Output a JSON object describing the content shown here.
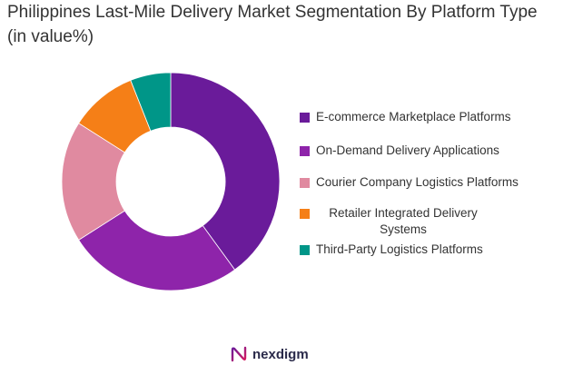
{
  "title": "Philippines Last-Mile Delivery Market Segmentation By Platform Type (in value%)",
  "brand": {
    "name": "nexdigm",
    "logo": "nexdigm-logo-icon"
  },
  "chart_data": {
    "type": "pie",
    "variant": "donut",
    "title": "Philippines Last-Mile Delivery Market Segmentation By Platform Type (in value%)",
    "legend_position": "right",
    "series": [
      {
        "name": "E-commerce Marketplace Platforms",
        "value": 40,
        "color": "#6a1b9a"
      },
      {
        "name": "On-Demand Delivery Applications",
        "value": 26,
        "color": "#8e24aa"
      },
      {
        "name": "Courier Company Logistics Platforms",
        "value": 18,
        "color": "#e08aa0"
      },
      {
        "name": "Retailer Integrated Delivery Systems",
        "value": 10,
        "color": "#f57f17"
      },
      {
        "name": "Third-Party Logistics Platforms",
        "value": 6,
        "color": "#009688"
      }
    ]
  }
}
